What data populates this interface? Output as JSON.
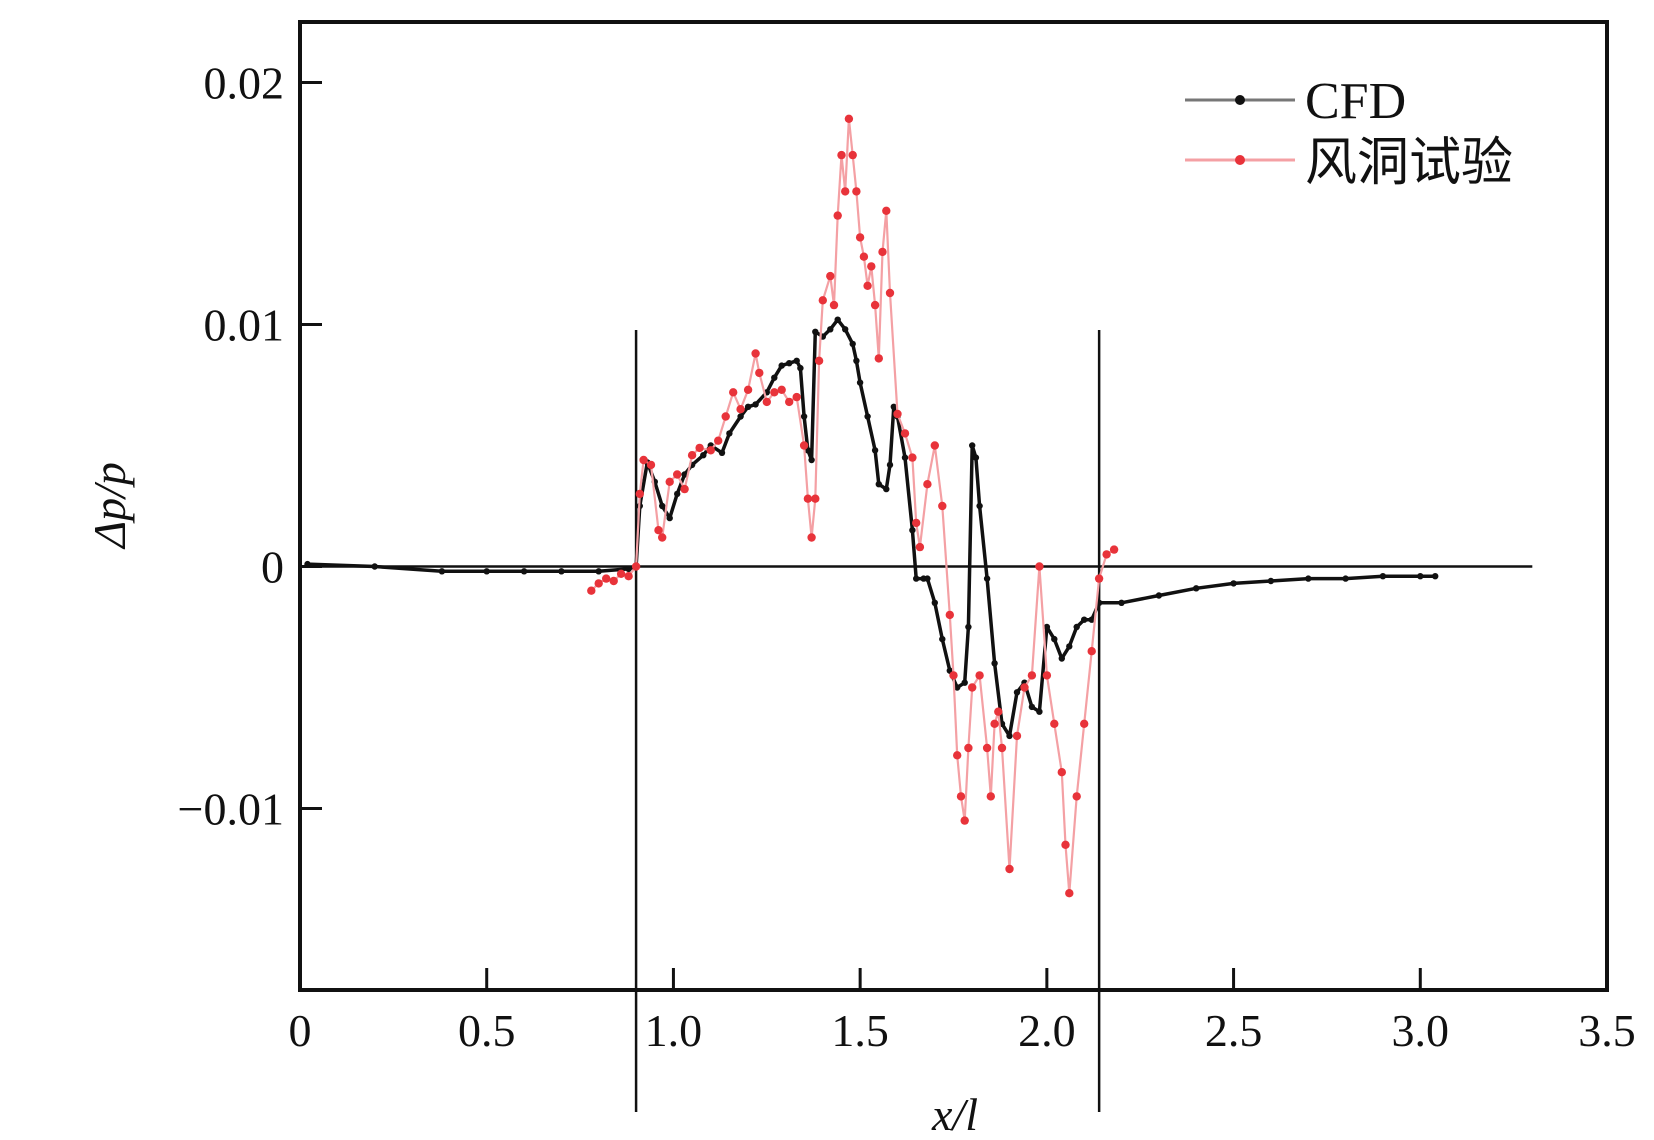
{
  "chart_data": {
    "type": "line",
    "title": "",
    "xlabel": "x/l",
    "ylabel": "Δp/p",
    "xlim": [
      0,
      3.5
    ],
    "ylim": [
      -0.0175,
      0.0225
    ],
    "grid": false,
    "legend_position": "top-right",
    "x_ticks": [
      0,
      0.5,
      1.0,
      1.5,
      2.0,
      2.5,
      3.0,
      3.5
    ],
    "x_tick_labels": [
      "0",
      "0.5",
      "1.0",
      "1.5",
      "2.0",
      "2.5",
      "3.0",
      "3.5"
    ],
    "y_ticks": [
      -0.01,
      0,
      0.01,
      0.02
    ],
    "y_tick_labels": [
      "−0.01",
      "0",
      "0.01",
      "0.02"
    ],
    "reference_lines": {
      "horizontal_y": 0,
      "horizontal_x_range": [
        0,
        3.3
      ],
      "vertical_x": [
        0.9,
        2.14
      ]
    },
    "colors": {
      "cfd": "#111111",
      "wind_tunnel": "#e8333a",
      "wind_tunnel_line": "#f4a0a4"
    },
    "series": [
      {
        "name": "CFD",
        "x": [
          0.02,
          0.2,
          0.38,
          0.5,
          0.6,
          0.7,
          0.8,
          0.88,
          0.9,
          0.91,
          0.93,
          0.95,
          0.97,
          0.99,
          1.01,
          1.03,
          1.05,
          1.08,
          1.1,
          1.13,
          1.15,
          1.18,
          1.2,
          1.22,
          1.25,
          1.27,
          1.29,
          1.31,
          1.33,
          1.34,
          1.35,
          1.36,
          1.37,
          1.38,
          1.4,
          1.42,
          1.44,
          1.46,
          1.48,
          1.49,
          1.5,
          1.52,
          1.54,
          1.55,
          1.57,
          1.58,
          1.59,
          1.6,
          1.62,
          1.64,
          1.65,
          1.67,
          1.68,
          1.7,
          1.72,
          1.74,
          1.76,
          1.78,
          1.79,
          1.8,
          1.81,
          1.82,
          1.84,
          1.86,
          1.88,
          1.9,
          1.92,
          1.94,
          1.96,
          1.98,
          2.0,
          2.02,
          2.04,
          2.06,
          2.08,
          2.1,
          2.12,
          2.14,
          2.2,
          2.3,
          2.4,
          2.5,
          2.6,
          2.7,
          2.8,
          2.9,
          3.0,
          3.04
        ],
        "y": [
          0.0001,
          0.0,
          -0.0002,
          -0.0002,
          -0.0002,
          -0.0002,
          -0.0002,
          -0.0001,
          0.0,
          0.0025,
          0.0043,
          0.0035,
          0.0025,
          0.002,
          0.003,
          0.0038,
          0.0042,
          0.0046,
          0.005,
          0.0047,
          0.0055,
          0.0062,
          0.0066,
          0.0067,
          0.0072,
          0.0078,
          0.0083,
          0.0084,
          0.0085,
          0.0082,
          0.0062,
          0.0048,
          0.0044,
          0.0097,
          0.0095,
          0.0098,
          0.0102,
          0.0098,
          0.0092,
          0.0085,
          0.0076,
          0.0062,
          0.0048,
          0.0034,
          0.0032,
          0.0042,
          0.0066,
          0.0062,
          0.0045,
          0.0015,
          -0.0005,
          -0.0005,
          -0.0005,
          -0.0015,
          -0.003,
          -0.0043,
          -0.005,
          -0.0048,
          -0.0025,
          0.005,
          0.0045,
          0.0025,
          -0.0005,
          -0.004,
          -0.0065,
          -0.007,
          -0.0052,
          -0.0048,
          -0.0058,
          -0.006,
          -0.0025,
          -0.003,
          -0.0038,
          -0.0033,
          -0.0025,
          -0.0022,
          -0.0022,
          -0.0015,
          -0.0015,
          -0.0012,
          -0.0009,
          -0.0007,
          -0.0006,
          -0.0005,
          -0.0005,
          -0.0004,
          -0.0004,
          -0.0004
        ]
      },
      {
        "name": "风洞试验",
        "x": [
          0.78,
          0.8,
          0.82,
          0.84,
          0.86,
          0.88,
          0.9,
          0.91,
          0.92,
          0.94,
          0.96,
          0.97,
          0.99,
          1.01,
          1.03,
          1.05,
          1.07,
          1.1,
          1.12,
          1.14,
          1.16,
          1.18,
          1.2,
          1.22,
          1.23,
          1.25,
          1.27,
          1.29,
          1.31,
          1.33,
          1.35,
          1.36,
          1.37,
          1.38,
          1.39,
          1.4,
          1.42,
          1.43,
          1.44,
          1.45,
          1.46,
          1.47,
          1.48,
          1.49,
          1.5,
          1.51,
          1.52,
          1.53,
          1.54,
          1.55,
          1.56,
          1.57,
          1.58,
          1.6,
          1.62,
          1.64,
          1.65,
          1.66,
          1.68,
          1.7,
          1.72,
          1.74,
          1.75,
          1.76,
          1.77,
          1.78,
          1.79,
          1.8,
          1.82,
          1.84,
          1.85,
          1.86,
          1.87,
          1.88,
          1.9,
          1.92,
          1.94,
          1.96,
          1.98,
          2.0,
          2.02,
          2.04,
          2.05,
          2.06,
          2.08,
          2.1,
          2.12,
          2.14,
          2.16,
          2.18
        ],
        "y": [
          -0.001,
          -0.0007,
          -0.0005,
          -0.0006,
          -0.0003,
          -0.0004,
          0.0,
          0.003,
          0.0044,
          0.0042,
          0.0015,
          0.0012,
          0.0035,
          0.0038,
          0.0032,
          0.0046,
          0.0049,
          0.0048,
          0.0052,
          0.0062,
          0.0072,
          0.0065,
          0.0073,
          0.0088,
          0.008,
          0.0068,
          0.0072,
          0.0073,
          0.0068,
          0.007,
          0.005,
          0.0028,
          0.0012,
          0.0028,
          0.0085,
          0.011,
          0.012,
          0.0108,
          0.0145,
          0.017,
          0.0155,
          0.0185,
          0.017,
          0.0155,
          0.0136,
          0.0128,
          0.0116,
          0.0124,
          0.0108,
          0.0086,
          0.013,
          0.0147,
          0.0113,
          0.0063,
          0.0055,
          0.0045,
          0.0018,
          0.0008,
          0.0034,
          0.005,
          0.0025,
          -0.002,
          -0.0045,
          -0.0078,
          -0.0095,
          -0.0105,
          -0.0075,
          -0.005,
          -0.0045,
          -0.0075,
          -0.0095,
          -0.0065,
          -0.006,
          -0.0075,
          -0.0125,
          -0.007,
          -0.005,
          -0.0045,
          0.0,
          -0.0045,
          -0.0065,
          -0.0085,
          -0.0115,
          -0.0135,
          -0.0095,
          -0.0065,
          -0.0035,
          -0.0005,
          0.0005,
          0.0007
        ]
      }
    ]
  }
}
